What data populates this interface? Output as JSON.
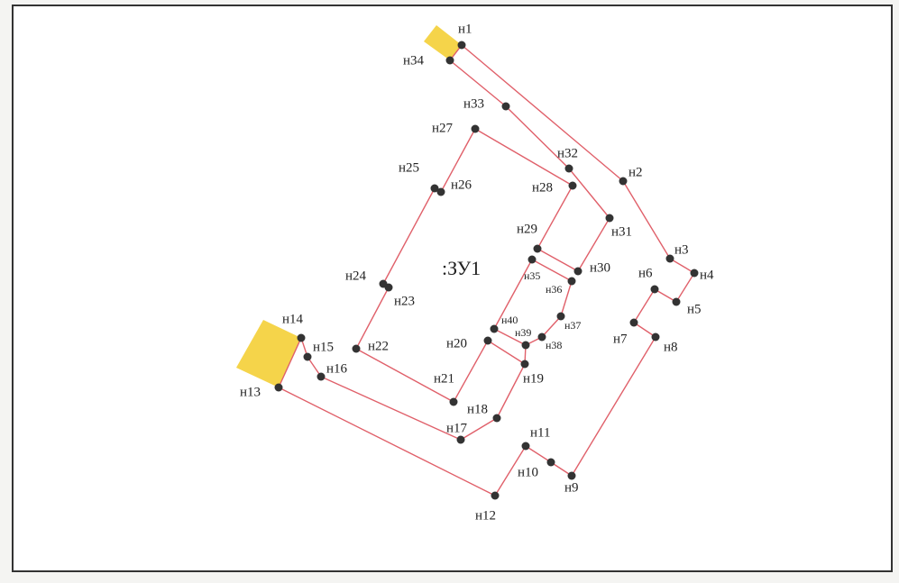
{
  "plot_label": ":ЗУ1",
  "nodes": [
    {
      "label": "н1"
    },
    {
      "label": "н2"
    },
    {
      "label": "н3"
    },
    {
      "label": "н4"
    },
    {
      "label": "н5"
    },
    {
      "label": "н6"
    },
    {
      "label": "н7"
    },
    {
      "label": "н8"
    },
    {
      "label": "н9"
    },
    {
      "label": "н10"
    },
    {
      "label": "н11"
    },
    {
      "label": "н12"
    },
    {
      "label": "н13"
    },
    {
      "label": "н14"
    },
    {
      "label": "н15"
    },
    {
      "label": "н16"
    },
    {
      "label": "н17"
    },
    {
      "label": "н18"
    },
    {
      "label": "н19"
    },
    {
      "label": "н20"
    },
    {
      "label": "н21"
    },
    {
      "label": "н22"
    },
    {
      "label": "н23"
    },
    {
      "label": "н24"
    },
    {
      "label": "н25"
    },
    {
      "label": "н26"
    },
    {
      "label": "н27"
    },
    {
      "label": "н28"
    },
    {
      "label": "н29"
    },
    {
      "label": "н30"
    },
    {
      "label": "н31"
    },
    {
      "label": "н32"
    },
    {
      "label": "н33"
    },
    {
      "label": "н34"
    },
    {
      "label": "н35"
    },
    {
      "label": "н36"
    },
    {
      "label": "н37"
    },
    {
      "label": "н38"
    },
    {
      "label": "н39"
    },
    {
      "label": "н40"
    }
  ]
}
